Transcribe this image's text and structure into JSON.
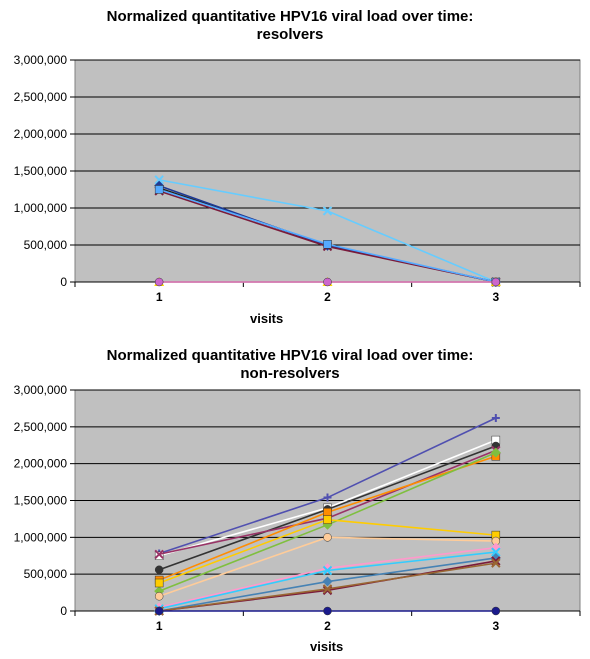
{
  "chart_data": [
    {
      "type": "line",
      "title_line1": "Normalized quantitative HPV16 viral load over time:",
      "title_line2": "resolvers",
      "xlabel": "visits",
      "ylabel": "",
      "categories": [
        "1",
        "2",
        "3"
      ],
      "yticks": [
        "0",
        "500,000",
        "1,000,000",
        "1,500,000",
        "2,000,000",
        "2,500,000",
        "3,000,000"
      ],
      "ylim": [
        0,
        3000000
      ],
      "grid": true,
      "plot_bg": "#c0c0c0",
      "series": [
        {
          "color": "#66ccff",
          "marker": "x",
          "values": [
            1380000,
            960000,
            0
          ]
        },
        {
          "color": "#222222",
          "marker": "circle",
          "values": [
            1270000,
            500000,
            0
          ]
        },
        {
          "color": "#1f3a93",
          "marker": "diamond",
          "values": [
            1300000,
            490000,
            0
          ]
        },
        {
          "color": "#7a1a3a",
          "marker": "x",
          "values": [
            1230000,
            480000,
            0
          ]
        },
        {
          "color": "#55aaff",
          "marker": "square",
          "values": [
            1250000,
            510000,
            0
          ]
        },
        {
          "color": "#ffd700",
          "marker": "triangle",
          "values": [
            0,
            0,
            0
          ]
        },
        {
          "color": "#cc66cc",
          "marker": "circle",
          "values": [
            0,
            0,
            0
          ]
        }
      ]
    },
    {
      "type": "line",
      "title_line1": "Normalized quantitative HPV16 viral load over time:",
      "title_line2": "non-resolvers",
      "xlabel": "visits",
      "ylabel": "",
      "categories": [
        "1",
        "2",
        "3"
      ],
      "yticks": [
        "0",
        "500,000",
        "1,000,000",
        "1,500,000",
        "2,000,000",
        "2,500,000",
        "3,000,000"
      ],
      "ylim": [
        0,
        3000000
      ],
      "grid": true,
      "plot_bg": "#c0c0c0",
      "series": [
        {
          "color": "#5050b0",
          "marker": "plus",
          "values": [
            780000,
            1540000,
            2620000
          ]
        },
        {
          "color": "#ffffff",
          "marker": "square",
          "values": [
            750000,
            1400000,
            2320000
          ]
        },
        {
          "color": "#333333",
          "marker": "circle",
          "values": [
            560000,
            1380000,
            2240000
          ]
        },
        {
          "color": "#993366",
          "marker": "x",
          "values": [
            770000,
            1260000,
            2180000
          ]
        },
        {
          "color": "#ff8c00",
          "marker": "square",
          "values": [
            420000,
            1340000,
            2100000
          ]
        },
        {
          "color": "#7fbf3f",
          "marker": "diamond",
          "values": [
            270000,
            1170000,
            2150000
          ]
        },
        {
          "color": "#ffcc00",
          "marker": "square",
          "values": [
            380000,
            1240000,
            1030000
          ]
        },
        {
          "color": "#ffcc99",
          "marker": "circle",
          "values": [
            200000,
            1000000,
            950000
          ]
        },
        {
          "color": "#ff99cc",
          "marker": "diamond",
          "values": [
            50000,
            580000,
            860000
          ]
        },
        {
          "color": "#33ccff",
          "marker": "x",
          "values": [
            30000,
            550000,
            800000
          ]
        },
        {
          "color": "#4682b4",
          "marker": "diamond",
          "values": [
            0,
            400000,
            720000
          ]
        },
        {
          "color": "#7a1a3a",
          "marker": "x",
          "values": [
            0,
            280000,
            680000
          ]
        },
        {
          "color": "#996633",
          "marker": "x",
          "values": [
            0,
            300000,
            650000
          ]
        },
        {
          "color": "#1a1a8c",
          "marker": "circle",
          "values": [
            0,
            0,
            0
          ]
        }
      ]
    }
  ]
}
